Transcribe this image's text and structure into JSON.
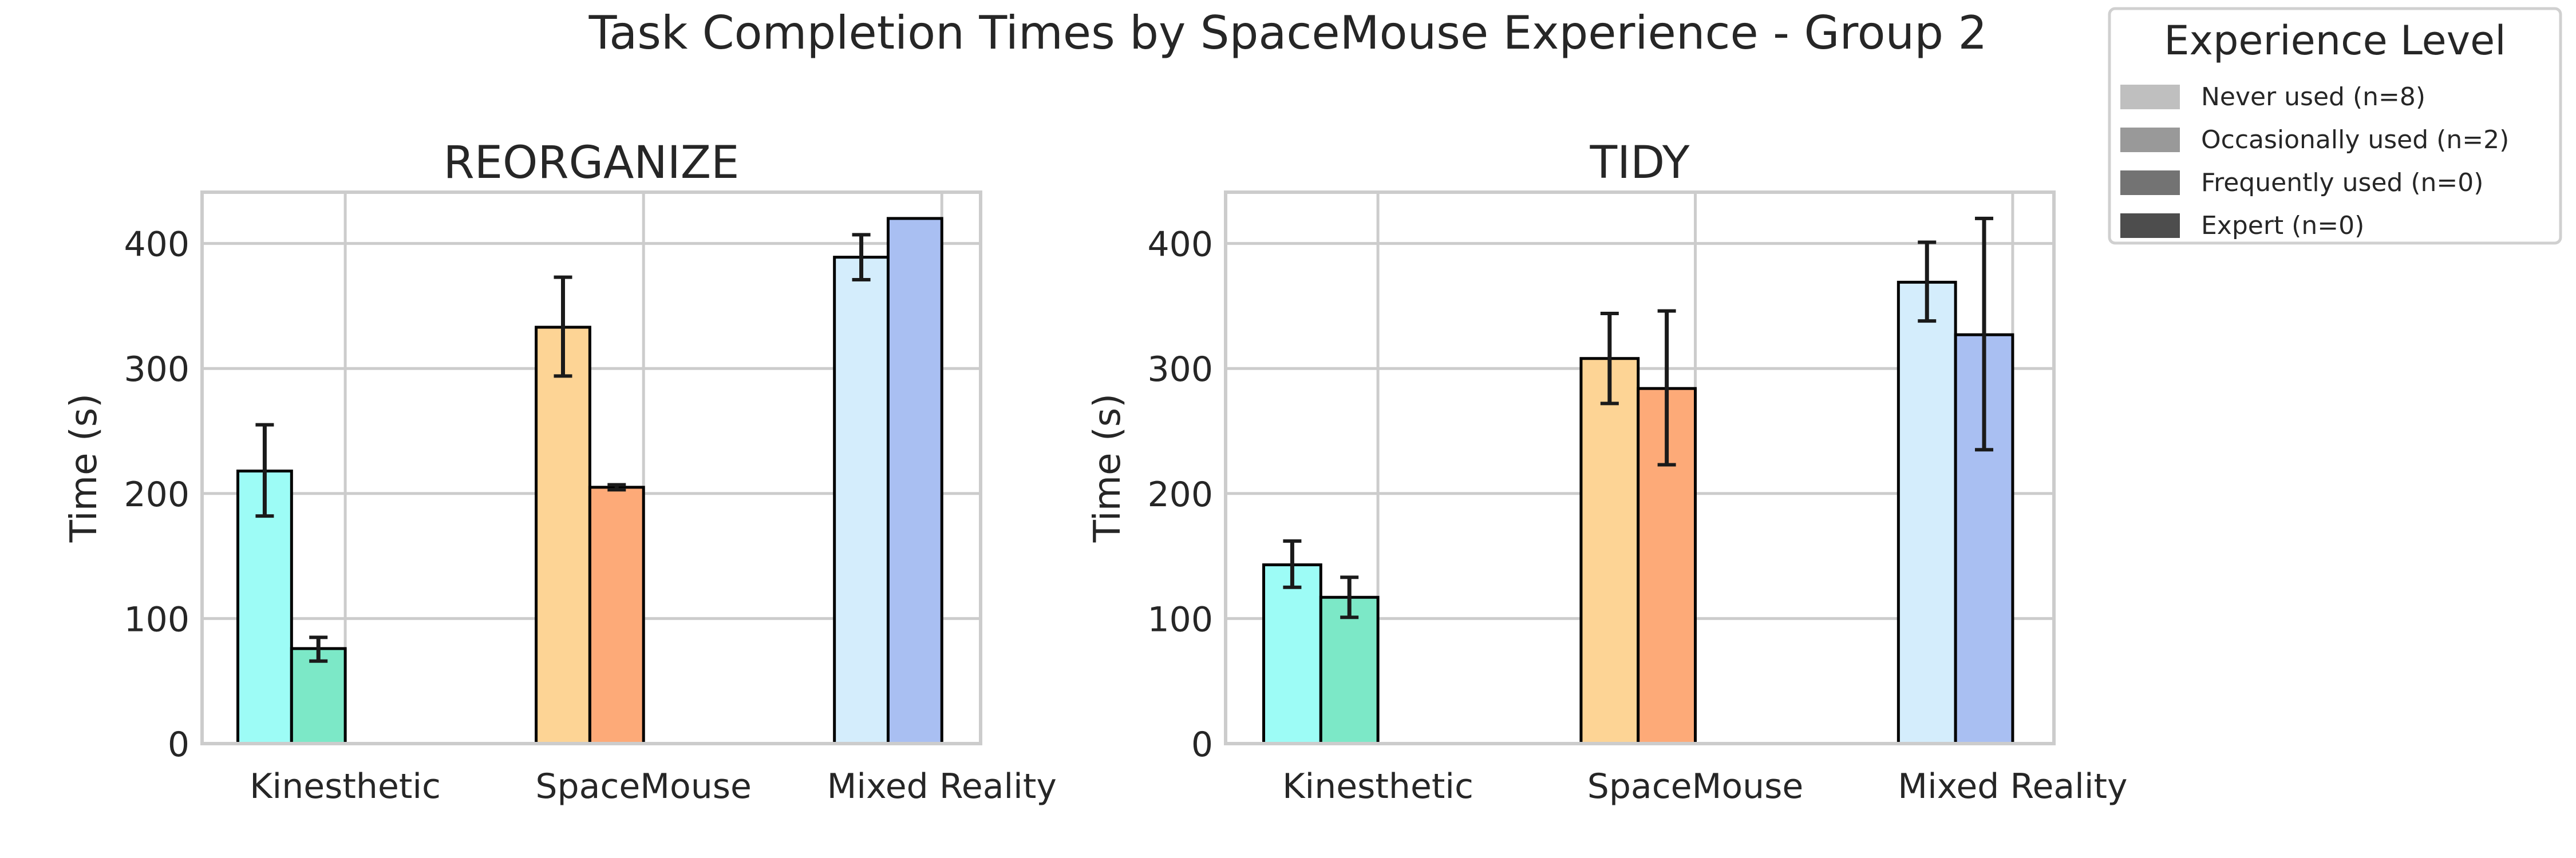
{
  "chart_data": {
    "title": "Task Completion Times by SpaceMouse Experience - Group 2",
    "legend": {
      "title": "Experience Level",
      "placement": "top-right",
      "entries": [
        {
          "label": "Never used (n=8)",
          "color": "#bfbfbf"
        },
        {
          "label": "Occasionally used (n=2)",
          "color": "#999999"
        },
        {
          "label": "Frequently used (n=0)",
          "color": "#737373"
        },
        {
          "label": "Expert (n=0)",
          "color": "#4d4d4d"
        }
      ]
    },
    "panels": [
      {
        "type": "bar",
        "title": "REORGANIZE",
        "ylabel": "Time (s)",
        "xlabel": "",
        "ylim": [
          0,
          441
        ],
        "yticks": [
          "0",
          "100",
          "200",
          "300",
          "400"
        ],
        "grid": true,
        "categories": [
          "Kinesthetic",
          "SpaceMouse",
          "Mixed Reality"
        ],
        "colors": [
          [
            "#9dfcf6",
            "#7ce8c7"
          ],
          [
            "#fdd495",
            "#fdaa78"
          ],
          [
            "#d4edfc",
            "#a9bff2"
          ]
        ],
        "series": [
          {
            "name": "Never used (n=8)",
            "values": [
              218,
              333,
              389
            ],
            "err_low": [
              182,
              294,
              371
            ],
            "err_high": [
              255,
              373,
              407
            ]
          },
          {
            "name": "Occasionally used (n=2)",
            "values": [
              76,
              205,
              420
            ],
            "err_low": [
              66,
              203,
              null
            ],
            "err_high": [
              85,
              207,
              null
            ]
          }
        ]
      },
      {
        "type": "bar",
        "title": "TIDY",
        "ylabel": "Time (s)",
        "xlabel": "",
        "ylim": [
          0,
          441
        ],
        "yticks": [
          "0",
          "100",
          "200",
          "300",
          "400"
        ],
        "grid": true,
        "categories": [
          "Kinesthetic",
          "SpaceMouse",
          "Mixed Reality"
        ],
        "colors": [
          [
            "#9dfcf6",
            "#7ce8c7"
          ],
          [
            "#fdd495",
            "#fdaa78"
          ],
          [
            "#d4edfc",
            "#a9bff2"
          ]
        ],
        "series": [
          {
            "name": "Never used (n=8)",
            "values": [
              143,
              308,
              369
            ],
            "err_low": [
              125,
              272,
              338
            ],
            "err_high": [
              162,
              344,
              401
            ]
          },
          {
            "name": "Occasionally used (n=2)",
            "values": [
              117,
              284,
              327
            ],
            "err_low": [
              101,
              223,
              235
            ],
            "err_high": [
              133,
              346,
              420
            ]
          }
        ]
      }
    ]
  }
}
